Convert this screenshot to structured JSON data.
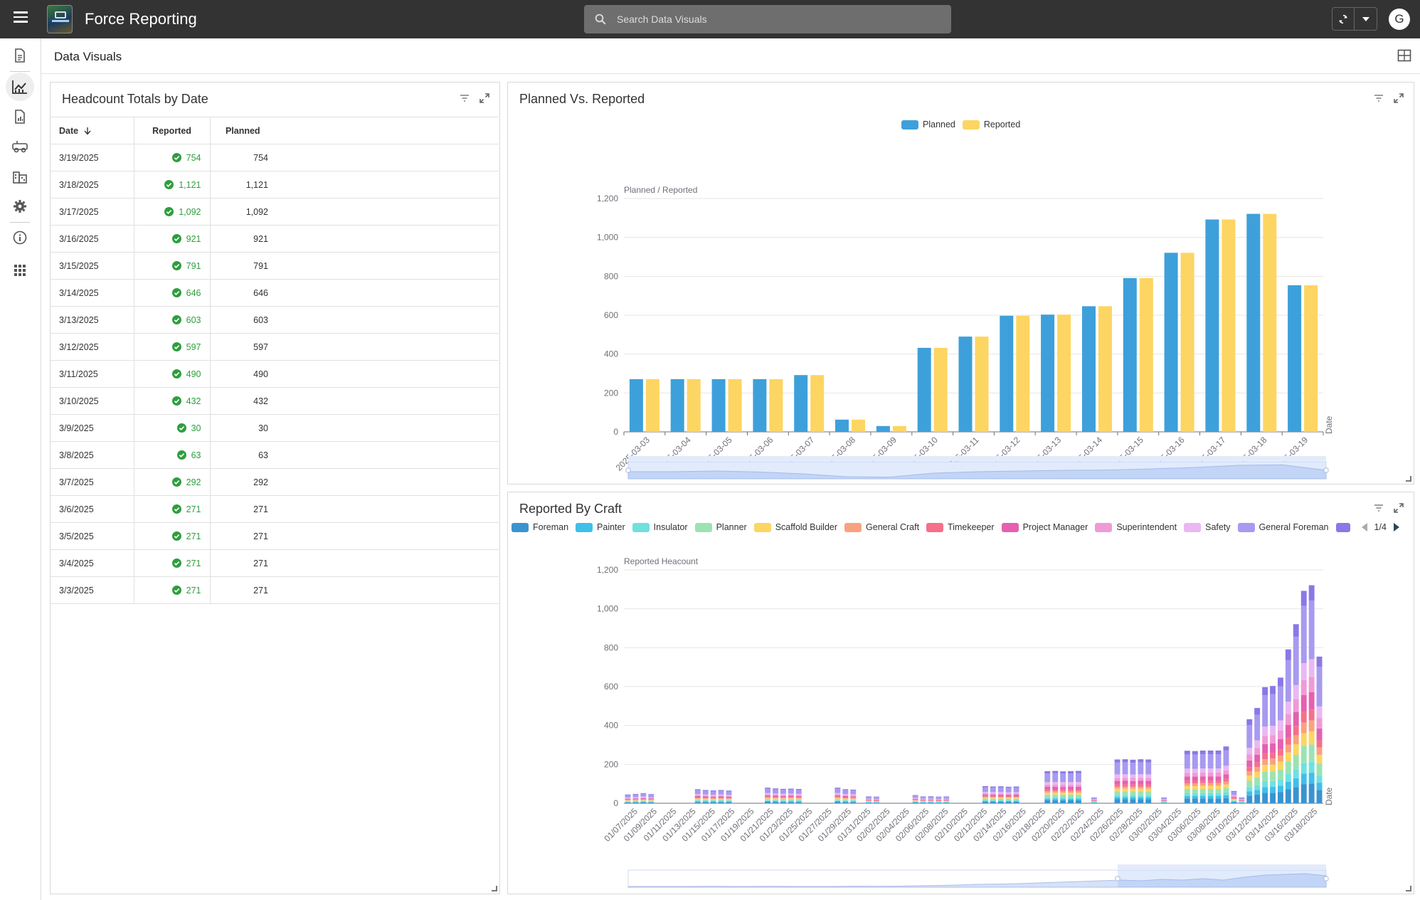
{
  "app": {
    "title": "Force Reporting",
    "avatar_letter": "G"
  },
  "search": {
    "placeholder": "Search Data Visuals"
  },
  "page": {
    "title": "Data Visuals"
  },
  "headcount_table": {
    "title": "Headcount Totals by Date",
    "columns": [
      "Date",
      "Reported",
      "Planned"
    ],
    "rows": [
      {
        "date": "3/19/2025",
        "reported": "754",
        "planned": "754"
      },
      {
        "date": "3/18/2025",
        "reported": "1,121",
        "planned": "1,121"
      },
      {
        "date": "3/17/2025",
        "reported": "1,092",
        "planned": "1,092"
      },
      {
        "date": "3/16/2025",
        "reported": "921",
        "planned": "921"
      },
      {
        "date": "3/15/2025",
        "reported": "791",
        "planned": "791"
      },
      {
        "date": "3/14/2025",
        "reported": "646",
        "planned": "646"
      },
      {
        "date": "3/13/2025",
        "reported": "603",
        "planned": "603"
      },
      {
        "date": "3/12/2025",
        "reported": "597",
        "planned": "597"
      },
      {
        "date": "3/11/2025",
        "reported": "490",
        "planned": "490"
      },
      {
        "date": "3/10/2025",
        "reported": "432",
        "planned": "432"
      },
      {
        "date": "3/9/2025",
        "reported": "30",
        "planned": "30"
      },
      {
        "date": "3/8/2025",
        "reported": "63",
        "planned": "63"
      },
      {
        "date": "3/7/2025",
        "reported": "292",
        "planned": "292"
      },
      {
        "date": "3/6/2025",
        "reported": "271",
        "planned": "271"
      },
      {
        "date": "3/5/2025",
        "reported": "271",
        "planned": "271"
      },
      {
        "date": "3/4/2025",
        "reported": "271",
        "planned": "271"
      },
      {
        "date": "3/3/2025",
        "reported": "271",
        "planned": "271"
      }
    ]
  },
  "planned_chart_title": "Planned Vs. Reported",
  "craft_chart_title": "Reported By Craft",
  "craft_legend_page": "1/4",
  "colors": {
    "planned": "#3ea0da",
    "reported": "#fdd562",
    "check": "#2e9e3e"
  },
  "chart_data": [
    {
      "type": "bar",
      "title": "Planned Vs. Reported",
      "ylabel": "Planned / Reported",
      "xlabel": "Date",
      "ylim": [
        0,
        1200
      ],
      "yticks": [
        "0",
        "200",
        "400",
        "600",
        "800",
        "1,000",
        "1,200"
      ],
      "legend": "top-center",
      "categories": [
        "2025-03-03",
        "2025-03-04",
        "2025-03-05",
        "2025-03-06",
        "2025-03-07",
        "2025-03-08",
        "2025-03-09",
        "2025-03-10",
        "2025-03-11",
        "2025-03-12",
        "2025-03-13",
        "2025-03-14",
        "2025-03-15",
        "2025-03-16",
        "2025-03-17",
        "2025-03-18",
        "2025-03-19"
      ],
      "series": [
        {
          "name": "Planned",
          "values": [
            271,
            271,
            271,
            271,
            292,
            63,
            30,
            432,
            490,
            597,
            603,
            646,
            791,
            921,
            1092,
            1121,
            754
          ]
        },
        {
          "name": "Reported",
          "values": [
            271,
            271,
            271,
            271,
            292,
            63,
            30,
            432,
            490,
            597,
            603,
            646,
            791,
            921,
            1092,
            1121,
            754
          ]
        }
      ]
    },
    {
      "type": "bar",
      "stacked": true,
      "title": "Reported By Craft",
      "ylabel": "Reported Heacount",
      "xlabel": "Date",
      "ylim": [
        0,
        1200
      ],
      "yticks": [
        "0",
        "200",
        "400",
        "600",
        "800",
        "1,000",
        "1,200"
      ],
      "legend": "top",
      "series_names": [
        "Foreman",
        "Painter",
        "Insulator",
        "Planner",
        "Scaffold Builder",
        "General Craft",
        "Timekeeper",
        "Project Manager",
        "Superintendent",
        "Safety",
        "General Foreman"
      ],
      "series_colors": [
        "#3a93d0",
        "#3fc0e8",
        "#6fe0e0",
        "#9be3b3",
        "#fdd562",
        "#f9a27f",
        "#f5708a",
        "#e560b0",
        "#ef9ad7",
        "#e9b8f2",
        "#a79af0",
        "#8a78e6"
      ],
      "x_labels": [
        "01/07/2025",
        "01/09/2025",
        "01/11/2025",
        "01/13/2025",
        "01/15/2025",
        "01/17/2025",
        "01/19/2025",
        "01/21/2025",
        "01/23/2025",
        "01/25/2025",
        "01/27/2025",
        "01/29/2025",
        "01/31/2025",
        "02/02/2025",
        "02/04/2025",
        "02/06/2025",
        "02/08/2025",
        "02/10/2025",
        "02/12/2025",
        "02/14/2025",
        "02/16/2025",
        "02/18/2025",
        "02/20/2025",
        "02/22/2025",
        "02/24/2025",
        "02/26/2025",
        "02/28/2025",
        "03/02/2025",
        "03/04/2025",
        "03/06/2025",
        "03/08/2025",
        "03/10/2025",
        "03/12/2025",
        "03/14/2025",
        "03/16/2025",
        "03/18/2025"
      ],
      "totals": [
        45,
        48,
        52,
        47,
        0,
        0,
        0,
        0,
        0,
        72,
        68,
        66,
        68,
        65,
        0,
        0,
        0,
        0,
        80,
        76,
        74,
        75,
        73,
        0,
        0,
        0,
        0,
        80,
        72,
        70,
        0,
        35,
        34,
        0,
        0,
        0,
        0,
        42,
        35,
        36,
        34,
        35,
        0,
        0,
        0,
        0,
        88,
        86,
        87,
        85,
        86,
        0,
        0,
        0,
        165,
        166,
        164,
        165,
        166,
        0,
        30,
        0,
        0,
        225,
        226,
        224,
        226,
        225,
        0,
        30,
        0,
        0,
        270,
        268,
        271,
        271,
        271,
        292,
        63,
        30,
        432,
        490,
        597,
        603,
        646,
        791,
        921,
        1092,
        1121,
        754
      ]
    }
  ]
}
